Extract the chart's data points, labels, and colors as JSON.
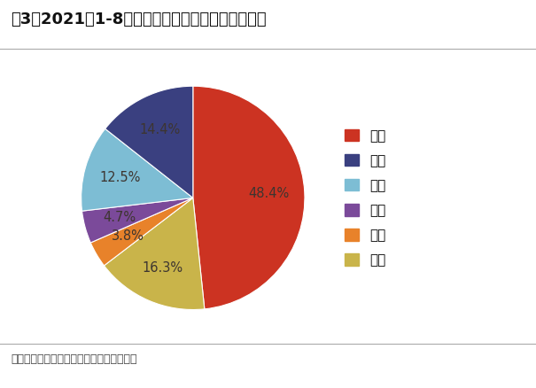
{
  "title": "图3：2021年1-8月国内各省份工业硅产量占比情况",
  "source_text": "资料来源：百川盈孚，光大证券研究所整理",
  "legend_labels": [
    "新疆",
    "云南",
    "四川",
    "福建",
    "重庆",
    "其它"
  ],
  "ordered_labels": [
    "新疆",
    "其它",
    "重庆",
    "福建",
    "四川",
    "云南"
  ],
  "ordered_values": [
    48.4,
    16.3,
    3.8,
    4.7,
    12.5,
    14.4
  ],
  "ordered_colors": [
    "#CC3322",
    "#C9B44A",
    "#E8822A",
    "#7B4A9A",
    "#7DBDD4",
    "#3A4080"
  ],
  "ordered_pcts": [
    "48.4%",
    "16.3%",
    "3.8%",
    "4.7%",
    "12.5%",
    "14.4%"
  ],
  "legend_colors": [
    "#CC3322",
    "#3A4080",
    "#7DBDD4",
    "#7B4A9A",
    "#E8822A",
    "#C9B44A"
  ],
  "pct_text_colors": [
    "#4A3A35",
    "#4A3A35",
    "#4A3A35",
    "#4A3A35",
    "#4A3A35",
    "#4A3A35"
  ],
  "background_color": "#FFFFFF",
  "title_color": "#111111",
  "title_fontsize": 13,
  "legend_fontsize": 11,
  "pct_fontsize": 10.5,
  "source_fontsize": 9,
  "startangle": 90
}
